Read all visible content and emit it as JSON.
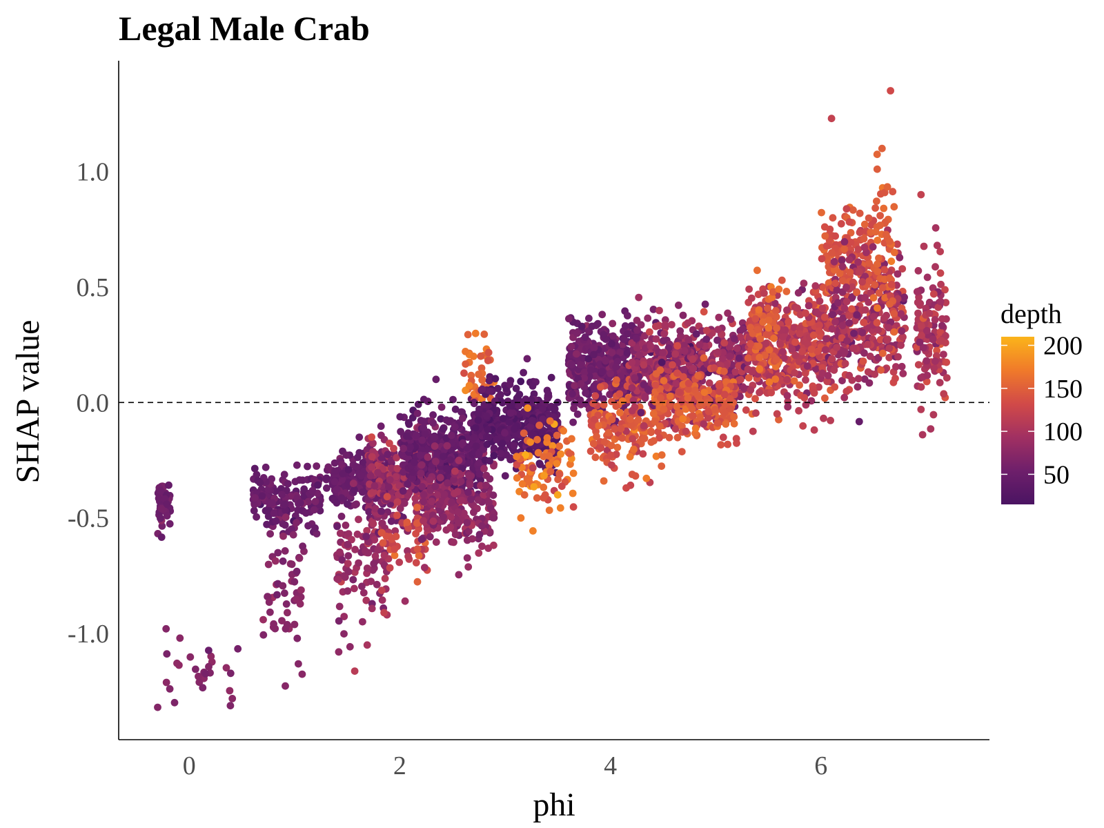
{
  "chart_data": {
    "type": "scatter",
    "title": "Legal Male Crab",
    "xlabel": "phi",
    "ylabel": "SHAP value",
    "xlim": [
      -0.67,
      7.6
    ],
    "ylim": [
      -1.46,
      1.48
    ],
    "x_ticks": [
      0,
      2,
      4,
      6
    ],
    "x_tick_labels": [
      "0",
      "2",
      "4",
      "6"
    ],
    "y_ticks": [
      -1.0,
      -0.5,
      0.0,
      0.5,
      1.0
    ],
    "y_tick_labels": [
      "-1.0",
      "-0.5",
      "0.0",
      "0.5",
      "1.0"
    ],
    "reference_line": {
      "y": 0.0,
      "style": "dashed"
    },
    "grid": false,
    "color_scale": {
      "variable": "depth",
      "title": "depth",
      "palette": [
        "#4a1462",
        "#6e1f6b",
        "#a13062",
        "#d14a48",
        "#f07a2a",
        "#fbb41a"
      ],
      "range": [
        15,
        210
      ],
      "ticks": [
        50,
        100,
        150,
        200
      ],
      "tick_labels": [
        "50",
        "100",
        "150",
        "200"
      ],
      "legend_placement": "right"
    },
    "clusters": [
      {
        "x": [
          -0.3,
          -0.18
        ],
        "y_mean": -0.43,
        "y_sd": 0.05,
        "depth_mean": 55,
        "depth_sd": 8,
        "n": 45
      },
      {
        "x": [
          -0.25,
          0.5
        ],
        "y_mean": -1.13,
        "y_sd": 0.1,
        "depth_mean": 70,
        "depth_sd": 8,
        "n": 26
      },
      {
        "x": [
          0.6,
          1.25
        ],
        "y_mean": -0.42,
        "y_sd": 0.06,
        "depth_mean": 50,
        "depth_sd": 8,
        "n": 160
      },
      {
        "x": [
          0.7,
          1.1
        ],
        "y_mean": -0.85,
        "y_sd": 0.15,
        "depth_mean": 72,
        "depth_sd": 8,
        "n": 55
      },
      {
        "x": [
          1.3,
          1.9
        ],
        "y_mean": -0.33,
        "y_sd": 0.06,
        "depth_mean": 50,
        "depth_sd": 8,
        "n": 210
      },
      {
        "x": [
          1.4,
          1.9
        ],
        "y_mean": -0.7,
        "y_sd": 0.12,
        "depth_mean": 85,
        "depth_sd": 12,
        "n": 110
      },
      {
        "x": [
          1.7,
          2.6
        ],
        "y_mean": -0.33,
        "y_sd": 0.1,
        "depth_mean": 85,
        "depth_sd": 20,
        "n": 420
      },
      {
        "x": [
          1.8,
          2.3
        ],
        "y_mean": -0.6,
        "y_sd": 0.08,
        "depth_mean": 135,
        "depth_sd": 15,
        "n": 45
      },
      {
        "x": [
          2.0,
          2.8
        ],
        "y_mean": -0.2,
        "y_sd": 0.08,
        "depth_mean": 45,
        "depth_sd": 8,
        "n": 330
      },
      {
        "x": [
          2.2,
          2.9
        ],
        "y_mean": -0.45,
        "y_sd": 0.1,
        "depth_mean": 80,
        "depth_sd": 10,
        "n": 200
      },
      {
        "x": [
          2.6,
          2.9
        ],
        "y_mean": 0.08,
        "y_sd": 0.09,
        "depth_mean": 158,
        "depth_sd": 12,
        "n": 45
      },
      {
        "x": [
          2.7,
          3.5
        ],
        "y_mean": -0.1,
        "y_sd": 0.08,
        "depth_mean": 35,
        "depth_sd": 7,
        "n": 420
      },
      {
        "x": [
          3.1,
          3.65
        ],
        "y_mean": -0.28,
        "y_sd": 0.1,
        "depth_mean": 160,
        "depth_sd": 20,
        "n": 90
      },
      {
        "x": [
          3.6,
          4.3
        ],
        "y_mean": 0.15,
        "y_sd": 0.1,
        "depth_mean": 55,
        "depth_sd": 10,
        "n": 380
      },
      {
        "x": [
          3.8,
          4.5
        ],
        "y_mean": -0.1,
        "y_sd": 0.1,
        "depth_mean": 145,
        "depth_sd": 12,
        "n": 160
      },
      {
        "x": [
          4.2,
          5.3
        ],
        "y_mean": 0.15,
        "y_sd": 0.1,
        "depth_mean": 85,
        "depth_sd": 20,
        "n": 520
      },
      {
        "x": [
          4.4,
          5.2
        ],
        "y_mean": 0.0,
        "y_sd": 0.08,
        "depth_mean": 145,
        "depth_sd": 15,
        "n": 220
      },
      {
        "x": [
          5.3,
          6.1
        ],
        "y_mean": 0.25,
        "y_sd": 0.12,
        "depth_mean": 115,
        "depth_sd": 20,
        "n": 420
      },
      {
        "x": [
          5.3,
          5.6
        ],
        "y_mean": 0.32,
        "y_sd": 0.09,
        "depth_mean": 150,
        "depth_sd": 10,
        "n": 55
      },
      {
        "x": [
          6.0,
          6.5
        ],
        "y_mean": 0.62,
        "y_sd": 0.12,
        "depth_mean": 140,
        "depth_sd": 10,
        "n": 140
      },
      {
        "x": [
          6.1,
          6.8
        ],
        "y_mean": 0.35,
        "y_sd": 0.15,
        "depth_mean": 100,
        "depth_sd": 20,
        "n": 320
      },
      {
        "x": [
          6.5,
          6.7
        ],
        "y_mean": 0.7,
        "y_sd": 0.2,
        "depth_mean": 150,
        "depth_sd": 10,
        "n": 55
      },
      {
        "x": [
          6.9,
          7.2
        ],
        "y_mean": 0.3,
        "y_sd": 0.15,
        "depth_mean": 105,
        "depth_sd": 15,
        "n": 130
      }
    ],
    "outliers": [
      {
        "x": 6.66,
        "y": 1.35,
        "depth": 130
      },
      {
        "x": 6.1,
        "y": 1.23,
        "depth": 120
      },
      {
        "x": 6.58,
        "y": 1.1,
        "depth": 150
      },
      {
        "x": 6.95,
        "y": 0.9,
        "depth": 120
      },
      {
        "x": -0.3,
        "y": -1.32,
        "depth": 70
      },
      {
        "x": -0.22,
        "y": -0.98,
        "depth": 70
      },
      {
        "x": 1.42,
        "y": -1.08,
        "depth": 80
      },
      {
        "x": 1.85,
        "y": -0.91,
        "depth": 120
      },
      {
        "x": 2.05,
        "y": -0.86,
        "depth": 90
      },
      {
        "x": 3.15,
        "y": -0.5,
        "depth": 170
      },
      {
        "x": 3.5,
        "y": -0.4,
        "depth": 200
      },
      {
        "x": 4.15,
        "y": -0.37,
        "depth": 130
      },
      {
        "x": 6.95,
        "y": -0.03,
        "depth": 110
      },
      {
        "x": 2.7,
        "y": 0.2,
        "depth": 170
      }
    ]
  }
}
